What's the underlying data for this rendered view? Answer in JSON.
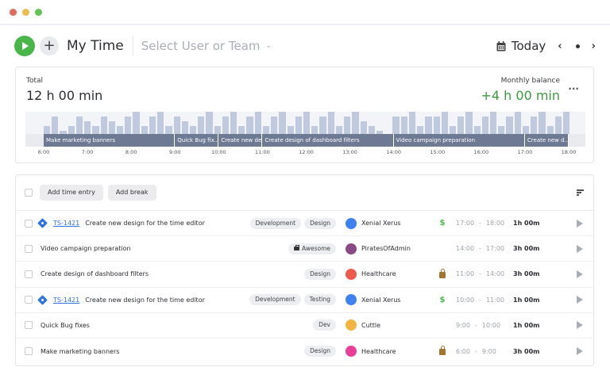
{
  "window": {
    "controls": [
      "close",
      "minimize",
      "maximize"
    ]
  },
  "header": {
    "title": "My Time",
    "user_select_placeholder": "Select User or Team",
    "date_label": "Today",
    "prev_label": "‹",
    "next_label": "›"
  },
  "summary": {
    "total_label": "Total",
    "total_value": "12 h 00 min",
    "balance_label": "Monthly balance",
    "balance_value": "+4 h 00 min",
    "more_label": "···"
  },
  "timeline": {
    "ticks": [
      "6:00",
      "7:00",
      "8:00",
      "9:00",
      "10:00",
      "11:00",
      "12:00",
      "13:00",
      "14:00",
      "15:00",
      "16:00",
      "17:00",
      "18:00"
    ],
    "segments": [
      {
        "label": "Make marketing banners",
        "start": 6,
        "end": 9
      },
      {
        "label": "Quick Bug fix...",
        "start": 9,
        "end": 10
      },
      {
        "label": "Create new de...",
        "start": 10,
        "end": 11
      },
      {
        "label": "Create design of dashboard filters",
        "start": 11,
        "end": 14
      },
      {
        "label": "Video campaign preparation",
        "start": 14,
        "end": 17
      },
      {
        "label": "Create new d...",
        "start": 17,
        "end": 18
      }
    ],
    "activity_levels": [
      2,
      4,
      1,
      2,
      4,
      3,
      2,
      4,
      3,
      2,
      4,
      5,
      2,
      4,
      5,
      2,
      4,
      3,
      2,
      4,
      5,
      2,
      4,
      5,
      2,
      4,
      5,
      2,
      4,
      5,
      2,
      4,
      5,
      2,
      4,
      5,
      2,
      4,
      5,
      3,
      2,
      1,
      0,
      4,
      4,
      5,
      2,
      4,
      4,
      5,
      2,
      4,
      5,
      2,
      4,
      5,
      2,
      4,
      5,
      2,
      4,
      5,
      2,
      4,
      5
    ]
  },
  "list": {
    "toolbar": {
      "add_time_entry": "Add time entry",
      "add_break": "Add break"
    },
    "entries": [
      {
        "key": "TS-1421",
        "description": "Create new design for the time editor",
        "tags": [
          "Development",
          "Design"
        ],
        "project": "Xenial Xerus",
        "project_color": "#3d82f0",
        "billing": "$",
        "locked": false,
        "start": "17:00",
        "end": "18:00",
        "duration": "1h 00m"
      },
      {
        "key": "",
        "description": "Video campaign preparation",
        "tags": [
          "Awesome"
        ],
        "tag_icon": "briefcase",
        "project": "PiratesOfAdmin",
        "project_color": "#8a4a85",
        "billing": "",
        "locked": false,
        "start": "14:00",
        "end": "17:00",
        "duration": "3h 00m"
      },
      {
        "key": "",
        "description": "Create design of dashboard filters",
        "tags": [
          "Design"
        ],
        "project": "Healthcare",
        "project_color": "#ec5a4b",
        "billing": "",
        "locked": true,
        "start": "11:00",
        "end": "14:00",
        "duration": "3h 00m"
      },
      {
        "key": "TS-1421",
        "description": "Create new design for the time editor",
        "tags": [
          "Development",
          "Testing"
        ],
        "project": "Xenial Xerus",
        "project_color": "#3d82f0",
        "billing": "$",
        "locked": false,
        "start": "10:00",
        "end": "11:00",
        "duration": "1h 00m"
      },
      {
        "key": "",
        "description": "Quick Bug fixes",
        "tags": [
          "Dev"
        ],
        "project": "Cuttle",
        "project_color": "#f2b541",
        "billing": "",
        "locked": false,
        "start": "9:00",
        "end": "10:00",
        "duration": "1h 00m"
      },
      {
        "key": "",
        "description": "Make marketing banners",
        "tags": [
          "Design"
        ],
        "project": "Healthcare",
        "project_color": "#e93e98",
        "billing": "",
        "locked": true,
        "start": "6:00",
        "end": "9:00",
        "duration": "3h 00m"
      }
    ]
  },
  "colors": {
    "accent_green": "#49b64a",
    "balance_green": "#3b9a3c",
    "link_blue": "#2d73e6",
    "segment": "#6e7a94",
    "bar": "#c0cade",
    "billing_green": "#4cbb4c",
    "lock_brown": "#a6742e"
  }
}
